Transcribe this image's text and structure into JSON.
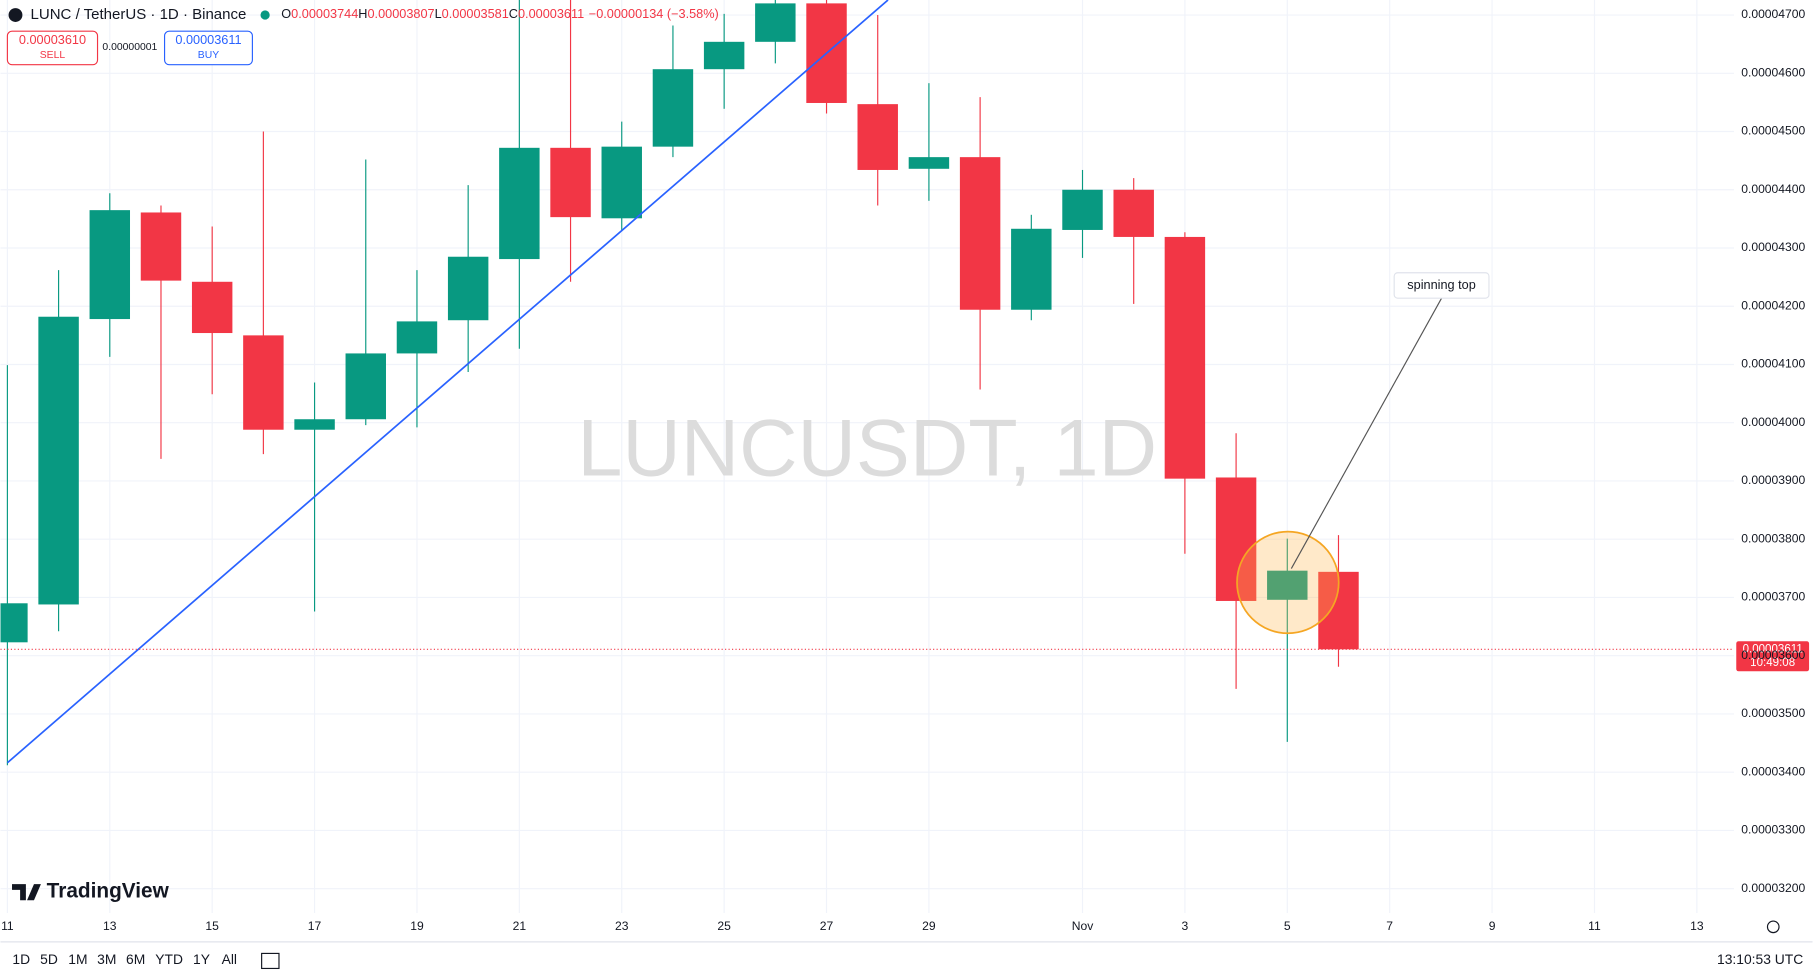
{
  "chart_data": {
    "type": "candlestick",
    "header": {
      "symbol": "LUNC / TetherUS · 1D · Binance",
      "ohlc": [
        {
          "key": "O",
          "value": "0.00003744"
        },
        {
          "key": "H",
          "value": "0.00003807"
        },
        {
          "key": "L",
          "value": "0.00003581"
        },
        {
          "key": "C",
          "value": "0.00003611"
        }
      ],
      "change": "−0.00000134 (−3.58%)"
    },
    "trade": {
      "sell_price": "0.00003610",
      "sell_label": "SELL",
      "spread": "0.00000001",
      "buy_price": "0.00003611",
      "buy_label": "BUY"
    },
    "watermark": "LUNCUSDT, 1D",
    "annotation": "spinning top",
    "brand": "TradingView",
    "categories": [
      "11",
      null,
      "13",
      null,
      "15",
      null,
      "17",
      null,
      "19",
      null,
      "21",
      null,
      "23",
      null,
      "25",
      null,
      "27",
      null,
      "29",
      null,
      null,
      "Nov",
      null,
      "3",
      null,
      "5",
      null,
      "7",
      null,
      "9",
      null,
      "11",
      null,
      "13"
    ],
    "up_color": "#089981",
    "down_color": "#f23645",
    "series": [
      {
        "name": "Open",
        "values": [
          3.623e-05,
          3.688e-05,
          4.178e-05,
          4.361e-05,
          4.242e-05,
          4.15e-05,
          3.988e-05,
          4.006e-05,
          4.119e-05,
          4.176e-05,
          4.281e-05,
          4.472e-05,
          4.351e-05,
          4.474e-05,
          4.607e-05,
          4.654e-05,
          4.72e-05,
          4.547e-05,
          4.436e-05,
          4.456e-05,
          4.194e-05,
          4.331e-05,
          4.4e-05,
          4.319e-05,
          3.906e-05,
          3.696e-05,
          3.744e-05,
          null,
          null,
          null,
          null,
          null,
          null,
          null
        ]
      },
      {
        "name": "High",
        "values": [
          4.099e-05,
          4.262e-05,
          4.394e-05,
          4.373e-05,
          4.337e-05,
          4.5e-05,
          4.069e-05,
          4.452e-05,
          4.262e-05,
          4.408e-05,
          4.76e-05,
          4.77e-05,
          4.517e-05,
          4.682e-05,
          4.702e-05,
          4.76e-05,
          4.76e-05,
          4.7e-05,
          4.583e-05,
          4.559e-05,
          4.357e-05,
          4.434e-05,
          4.42e-05,
          4.327e-05,
          3.982e-05,
          3.801e-05,
          3.807e-05,
          null,
          null,
          null,
          null,
          null,
          null,
          null
        ]
      },
      {
        "name": "Low",
        "values": [
          3.412e-05,
          3.642e-05,
          4.113e-05,
          3.938e-05,
          4.049e-05,
          3.946e-05,
          3.676e-05,
          3.996e-05,
          3.992e-05,
          4.087e-05,
          4.127e-05,
          4.242e-05,
          4.329e-05,
          4.456e-05,
          4.539e-05,
          4.617e-05,
          4.531e-05,
          4.373e-05,
          4.381e-05,
          4.057e-05,
          4.176e-05,
          4.283e-05,
          4.204e-05,
          3.775e-05,
          3.543e-05,
          3.452e-05,
          3.581e-05,
          null,
          null,
          null,
          null,
          null,
          null,
          null
        ]
      },
      {
        "name": "Close",
        "values": [
          3.69e-05,
          4.182e-05,
          4.365e-05,
          4.244e-05,
          4.154e-05,
          3.988e-05,
          4.006e-05,
          4.119e-05,
          4.174e-05,
          4.285e-05,
          4.472e-05,
          4.353e-05,
          4.474e-05,
          4.607e-05,
          4.654e-05,
          4.72e-05,
          4.549e-05,
          4.434e-05,
          4.456e-05,
          4.194e-05,
          4.333e-05,
          4.4e-05,
          4.319e-05,
          3.904e-05,
          3.694e-05,
          3.746e-05,
          3.611e-05,
          null,
          null,
          null,
          null,
          null,
          null,
          null
        ]
      }
    ],
    "ylim": [
      3.1583e-05,
      4.7258e-05
    ],
    "yticks": [
      {
        "value": 3.2e-05,
        "label": "0.00003200"
      },
      {
        "value": 3.3e-05,
        "label": "0.00003300"
      },
      {
        "value": 3.4e-05,
        "label": "0.00003400"
      },
      {
        "value": 3.5e-05,
        "label": "0.00003500"
      },
      {
        "value": 3.6e-05,
        "label": "0.00003600"
      },
      {
        "value": 3.7e-05,
        "label": "0.00003700"
      },
      {
        "value": 3.8e-05,
        "label": "0.00003800"
      },
      {
        "value": 3.9e-05,
        "label": "0.00003900"
      },
      {
        "value": 4e-05,
        "label": "0.00004000"
      },
      {
        "value": 4.1e-05,
        "label": "0.00004100"
      },
      {
        "value": 4.2e-05,
        "label": "0.00004200"
      },
      {
        "value": 4.3e-05,
        "label": "0.00004300"
      },
      {
        "value": 4.4e-05,
        "label": "0.00004400"
      },
      {
        "value": 4.5e-05,
        "label": "0.00004500"
      },
      {
        "value": 4.6e-05,
        "label": "0.00004600"
      },
      {
        "value": 4.7e-05,
        "label": "0.00004700"
      }
    ],
    "grid": true,
    "last_price": {
      "value": 3.611e-05,
      "label": "0.00003611"
    },
    "countdown": "10:49:08",
    "timeframes": [
      "1D",
      "5D",
      "1M",
      "3M",
      "6M",
      "YTD",
      "1Y",
      "All"
    ],
    "clock": "13:10:53 UTC"
  }
}
